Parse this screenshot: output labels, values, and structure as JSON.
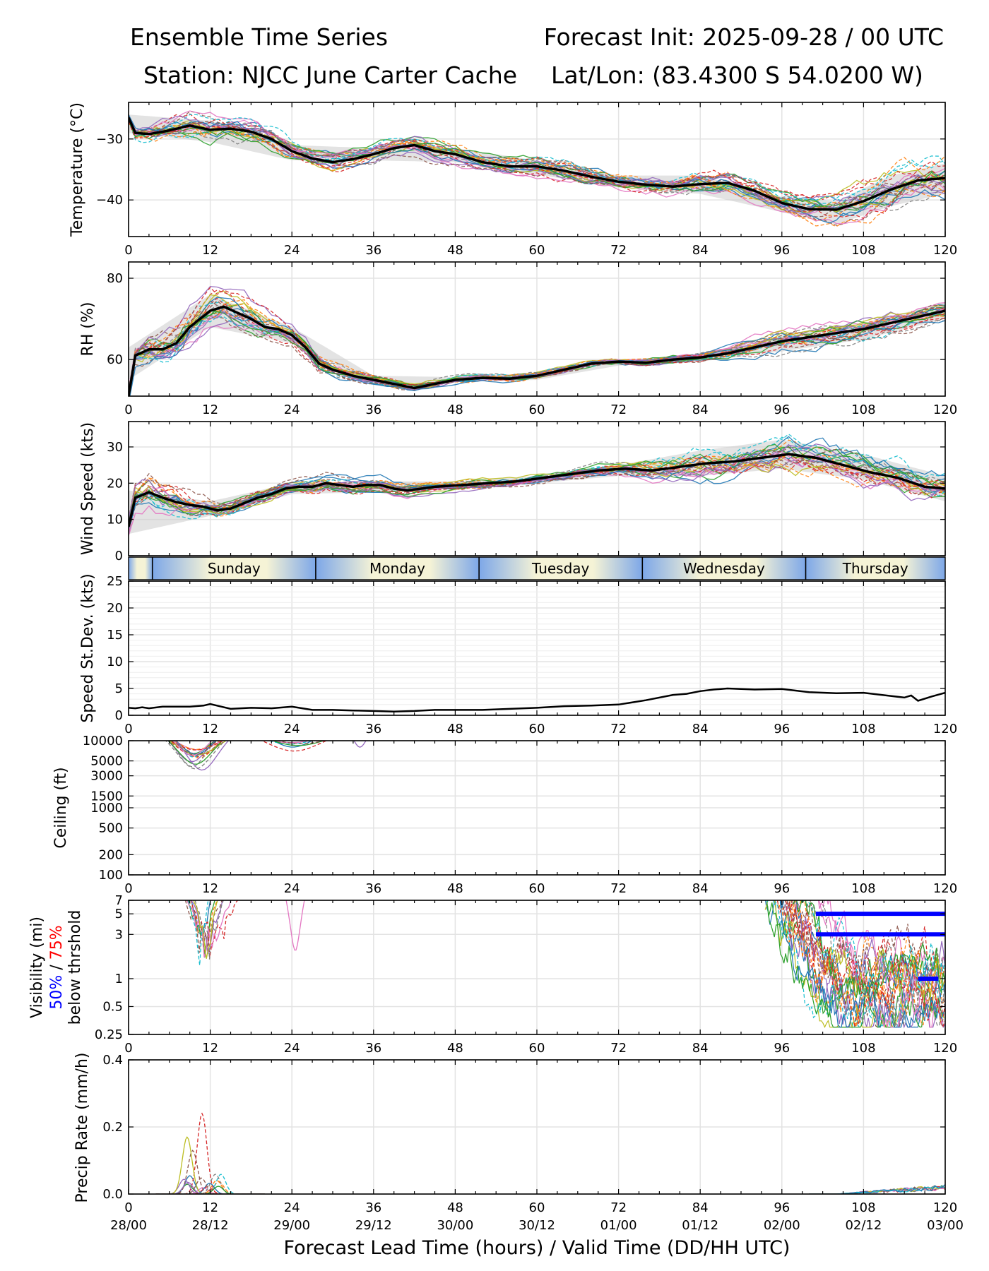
{
  "header": {
    "title_left": "Ensemble Time Series",
    "title_right": "Forecast Init: 2025-09-28 / 00 UTC",
    "station": "Station: NJCC June Carter Cache",
    "latlon": "Lat/Lon: (83.4300 S 54.0200 W)"
  },
  "x_axis": {
    "ticks": [
      "0",
      "12",
      "24",
      "36",
      "48",
      "60",
      "72",
      "84",
      "96",
      "108",
      "120"
    ],
    "valid_times": [
      "28/00",
      "28/12",
      "29/00",
      "29/12",
      "30/00",
      "30/12",
      "01/00",
      "01/12",
      "02/00",
      "02/12",
      "03/00"
    ],
    "label": "Forecast Lead Time (hours) / Valid Time (DD/HH UTC)"
  },
  "day_bar": {
    "days": [
      "Sunday",
      "Monday",
      "Tuesday",
      "Wednesday",
      "Thursday"
    ],
    "colors": {
      "night": "#7da7e8",
      "day": "#f5f3d6"
    }
  },
  "panels_labels": {
    "temperature": "Temperature (°C)",
    "rh": "RH (%)",
    "wind": "Wind Speed (kts)",
    "stdev": "Speed St.Dev. (kts)",
    "ceiling": "Ceiling (ft)",
    "visibility_line1": "Visibility (mi)",
    "visibility_50": "50%",
    "visibility_sep": " / ",
    "visibility_75": "75%",
    "visibility_line3": "below thrshold",
    "precip": "Precip Rate (mm/h)"
  },
  "chart_data": [
    {
      "type": "line",
      "name": "temperature",
      "ylabel": "Temperature (°C)",
      "xlim": [
        0,
        120
      ],
      "ylim": [
        -46,
        -24
      ],
      "yticks": [
        -30,
        -40
      ],
      "ytick_labels": [
        "−30",
        "−40"
      ],
      "mean": {
        "x": [
          0,
          1,
          3,
          6,
          9,
          12,
          15,
          18,
          21,
          24,
          27,
          30,
          33,
          36,
          39,
          42,
          45,
          48,
          52,
          56,
          60,
          64,
          68,
          72,
          76,
          80,
          84,
          88,
          92,
          96,
          100,
          104,
          108,
          112,
          116,
          120
        ],
        "y": [
          -26.5,
          -29,
          -29.2,
          -28.6,
          -27.8,
          -28.5,
          -28.3,
          -28.8,
          -30,
          -32,
          -33.2,
          -33.8,
          -33.3,
          -32.5,
          -31.5,
          -31,
          -32,
          -32.5,
          -33.8,
          -34.5,
          -34.5,
          -35.2,
          -36.2,
          -37,
          -37.5,
          -37.8,
          -37.4,
          -37.2,
          -38.5,
          -40.5,
          -41.5,
          -41.6,
          -40.2,
          -38.3,
          -36.8,
          -36.4
        ]
      },
      "spread": {
        "x": [
          0,
          12,
          24,
          36,
          48,
          60,
          72,
          84,
          96,
          104,
          112,
          120
        ],
        "lo": [
          -29,
          -30.5,
          -33.5,
          -33.5,
          -33.8,
          -35.8,
          -38,
          -39,
          -42,
          -44,
          -41,
          -39
        ],
        "hi": [
          -26,
          -27,
          -31,
          -31.5,
          -31.5,
          -33.5,
          -36,
          -36,
          -39.5,
          -40.2,
          -36,
          -34
        ]
      }
    },
    {
      "type": "line",
      "name": "relative_humidity",
      "ylabel": "RH (%)",
      "xlim": [
        0,
        120
      ],
      "ylim": [
        51,
        84
      ],
      "yticks": [
        60,
        80
      ],
      "ytick_labels": [
        "60",
        "80"
      ],
      "mean": {
        "x": [
          0,
          1,
          3,
          5,
          7,
          9,
          12,
          14,
          16,
          18,
          20,
          22,
          24,
          26,
          28,
          30,
          33,
          36,
          39,
          42,
          45,
          48,
          52,
          56,
          60,
          64,
          68,
          72,
          76,
          80,
          84,
          88,
          92,
          96,
          100,
          104,
          108,
          112,
          116,
          120
        ],
        "y": [
          51,
          61,
          62.5,
          62.5,
          64,
          68,
          72,
          73,
          71.5,
          70,
          68,
          67.5,
          66,
          63,
          59,
          57.5,
          56,
          55,
          54,
          53,
          54,
          55,
          55.5,
          55.3,
          56,
          57.5,
          59,
          59.5,
          59.2,
          60,
          60.5,
          61.5,
          63,
          64.5,
          65.5,
          66.5,
          67.5,
          69,
          70.5,
          72
        ]
      },
      "spread": {
        "x": [
          0,
          12,
          24,
          36,
          48,
          60,
          72,
          84,
          96,
          108,
          120
        ],
        "lo": [
          55,
          68,
          64,
          54,
          54.5,
          55,
          58.5,
          59.5,
          62,
          65,
          70
        ],
        "hi": [
          63,
          76,
          68,
          56,
          55.7,
          56.5,
          60,
          61,
          66,
          69,
          74
        ]
      }
    },
    {
      "type": "line",
      "name": "wind_speed",
      "ylabel": "Wind Speed (kts)",
      "xlim": [
        0,
        120
      ],
      "ylim": [
        0,
        37
      ],
      "yticks": [
        0,
        10,
        20,
        30
      ],
      "ytick_labels": [
        "0",
        "10",
        "20",
        "30"
      ],
      "mean": {
        "x": [
          0,
          1,
          3,
          5,
          7,
          9,
          11,
          13,
          15,
          17,
          19,
          21,
          23,
          25,
          27,
          29,
          31,
          33,
          35,
          37,
          39,
          41,
          45,
          49,
          53,
          57,
          61,
          65,
          69,
          73,
          77,
          81,
          85,
          89,
          93,
          97,
          101,
          105,
          109,
          113,
          117,
          120
        ],
        "y": [
          8,
          16,
          17.5,
          16,
          14.8,
          14,
          13.5,
          12.5,
          13,
          14.5,
          16,
          17,
          18.5,
          19,
          19,
          20,
          19.5,
          19,
          19.5,
          19.5,
          18.5,
          18,
          19,
          19.5,
          20,
          20.5,
          21.5,
          22.5,
          23.5,
          24,
          23.5,
          24.5,
          25.5,
          26,
          27,
          28,
          27,
          25,
          23,
          21.5,
          19,
          18.5
        ]
      },
      "spread": {
        "x": [
          0,
          12,
          24,
          36,
          48,
          60,
          72,
          84,
          96,
          108,
          120
        ],
        "lo": [
          6,
          11,
          17,
          17.5,
          18.5,
          20,
          22,
          22,
          24,
          21,
          15
        ],
        "hi": [
          18,
          15,
          20,
          20.5,
          20.5,
          22,
          25,
          29,
          32,
          28,
          22
        ]
      }
    },
    {
      "type": "line",
      "name": "speed_stdev",
      "ylabel": "Speed St.Dev. (kts)",
      "xlim": [
        0,
        120
      ],
      "ylim": [
        0,
        25
      ],
      "yticks": [
        0,
        5,
        10,
        15,
        20,
        25
      ],
      "ytick_labels": [
        "0",
        "5",
        "10",
        "15",
        "20",
        "25"
      ],
      "x": [
        0,
        1,
        2,
        3,
        5,
        7,
        9,
        11,
        12,
        13,
        15,
        18,
        21,
        24,
        27,
        30,
        33,
        36,
        39,
        42,
        45,
        48,
        52,
        56,
        60,
        64,
        68,
        72,
        76,
        80,
        82,
        84,
        86,
        88,
        92,
        96,
        98,
        100,
        104,
        108,
        112,
        114,
        115,
        116,
        118,
        120
      ],
      "y": [
        1.4,
        1.3,
        1.5,
        1.3,
        1.6,
        1.6,
        1.6,
        1.8,
        2.1,
        1.8,
        1.2,
        1.4,
        1.3,
        1.6,
        1.0,
        1.0,
        0.9,
        0.8,
        0.7,
        0.8,
        1.0,
        1.0,
        1.0,
        1.2,
        1.4,
        1.7,
        1.8,
        2.0,
        2.8,
        3.8,
        4.0,
        4.5,
        4.8,
        5.0,
        4.8,
        4.9,
        4.6,
        4.3,
        4.1,
        4.2,
        3.6,
        3.3,
        3.7,
        2.7,
        3.5,
        4.2
      ]
    },
    {
      "type": "line",
      "name": "ceiling",
      "ylabel": "Ceiling (ft)",
      "scale": "log",
      "xlim": [
        0,
        120
      ],
      "ylim": [
        100,
        10000
      ],
      "yticks": [
        100,
        200,
        500,
        1000,
        1500,
        3000,
        5000,
        10000
      ],
      "ytick_labels": [
        "100",
        "200",
        "500",
        "1000",
        "1500",
        "3000",
        "5000",
        "10000"
      ],
      "members_note": "clouds between 5-14 h and 20-34 h, mostly above 4000 ft"
    },
    {
      "type": "line",
      "name": "visibility",
      "ylabel": "Visibility (mi)",
      "scale": "log",
      "xlim": [
        0,
        120
      ],
      "ylim": [
        0.25,
        7
      ],
      "yticks": [
        0.25,
        0.5,
        1,
        3,
        5,
        7
      ],
      "ytick_labels": [
        "0.25",
        "0.5",
        "1",
        "3",
        "5",
        "7"
      ],
      "threshold_bars": [
        {
          "prob": "50%",
          "threshold": 5,
          "x_start": 101,
          "x_end": 120
        },
        {
          "prob": "50%",
          "threshold": 3,
          "x_start": 101,
          "x_end": 120
        },
        {
          "prob": "50%",
          "threshold": 1,
          "x_start": 116,
          "x_end": 119
        }
      ]
    },
    {
      "type": "line",
      "name": "precip_rate",
      "ylabel": "Precip Rate (mm/h)",
      "xlim": [
        0,
        120
      ],
      "ylim": [
        0.0,
        0.4
      ],
      "yticks": [
        0.0,
        0.2,
        0.4
      ],
      "ytick_labels": [
        "0.0",
        "0.2",
        "0.4"
      ],
      "peak": {
        "x": 10.8,
        "y": 0.24
      }
    }
  ]
}
